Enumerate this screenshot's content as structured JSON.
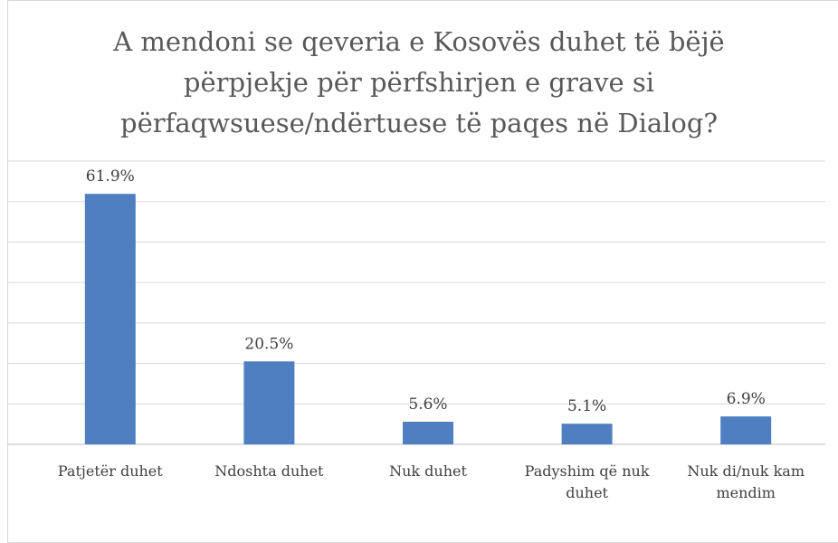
{
  "chart_data": {
    "type": "bar",
    "title": "A mendoni se qeveria e Kosovës duhet të bëjë përpjekje për përfshirjen e grave si përfaqwsuese/ndërtuese të paqes në Dialog?",
    "categories": [
      "Patjetër duhet",
      "Ndoshta duhet",
      "Nuk duhet",
      "Padyshim që nuk duhet",
      "Nuk di/nuk kam mendim"
    ],
    "values": [
      61.9,
      20.5,
      5.6,
      5.1,
      6.9
    ],
    "value_labels": [
      "61.9%",
      "20.5%",
      "5.6%",
      "5.1%",
      "6.9%"
    ],
    "color": "#4f7fc0",
    "ylim": [
      0,
      70
    ],
    "yticks": [
      0,
      10,
      20,
      30,
      40,
      50,
      60,
      70
    ],
    "grid": true
  }
}
